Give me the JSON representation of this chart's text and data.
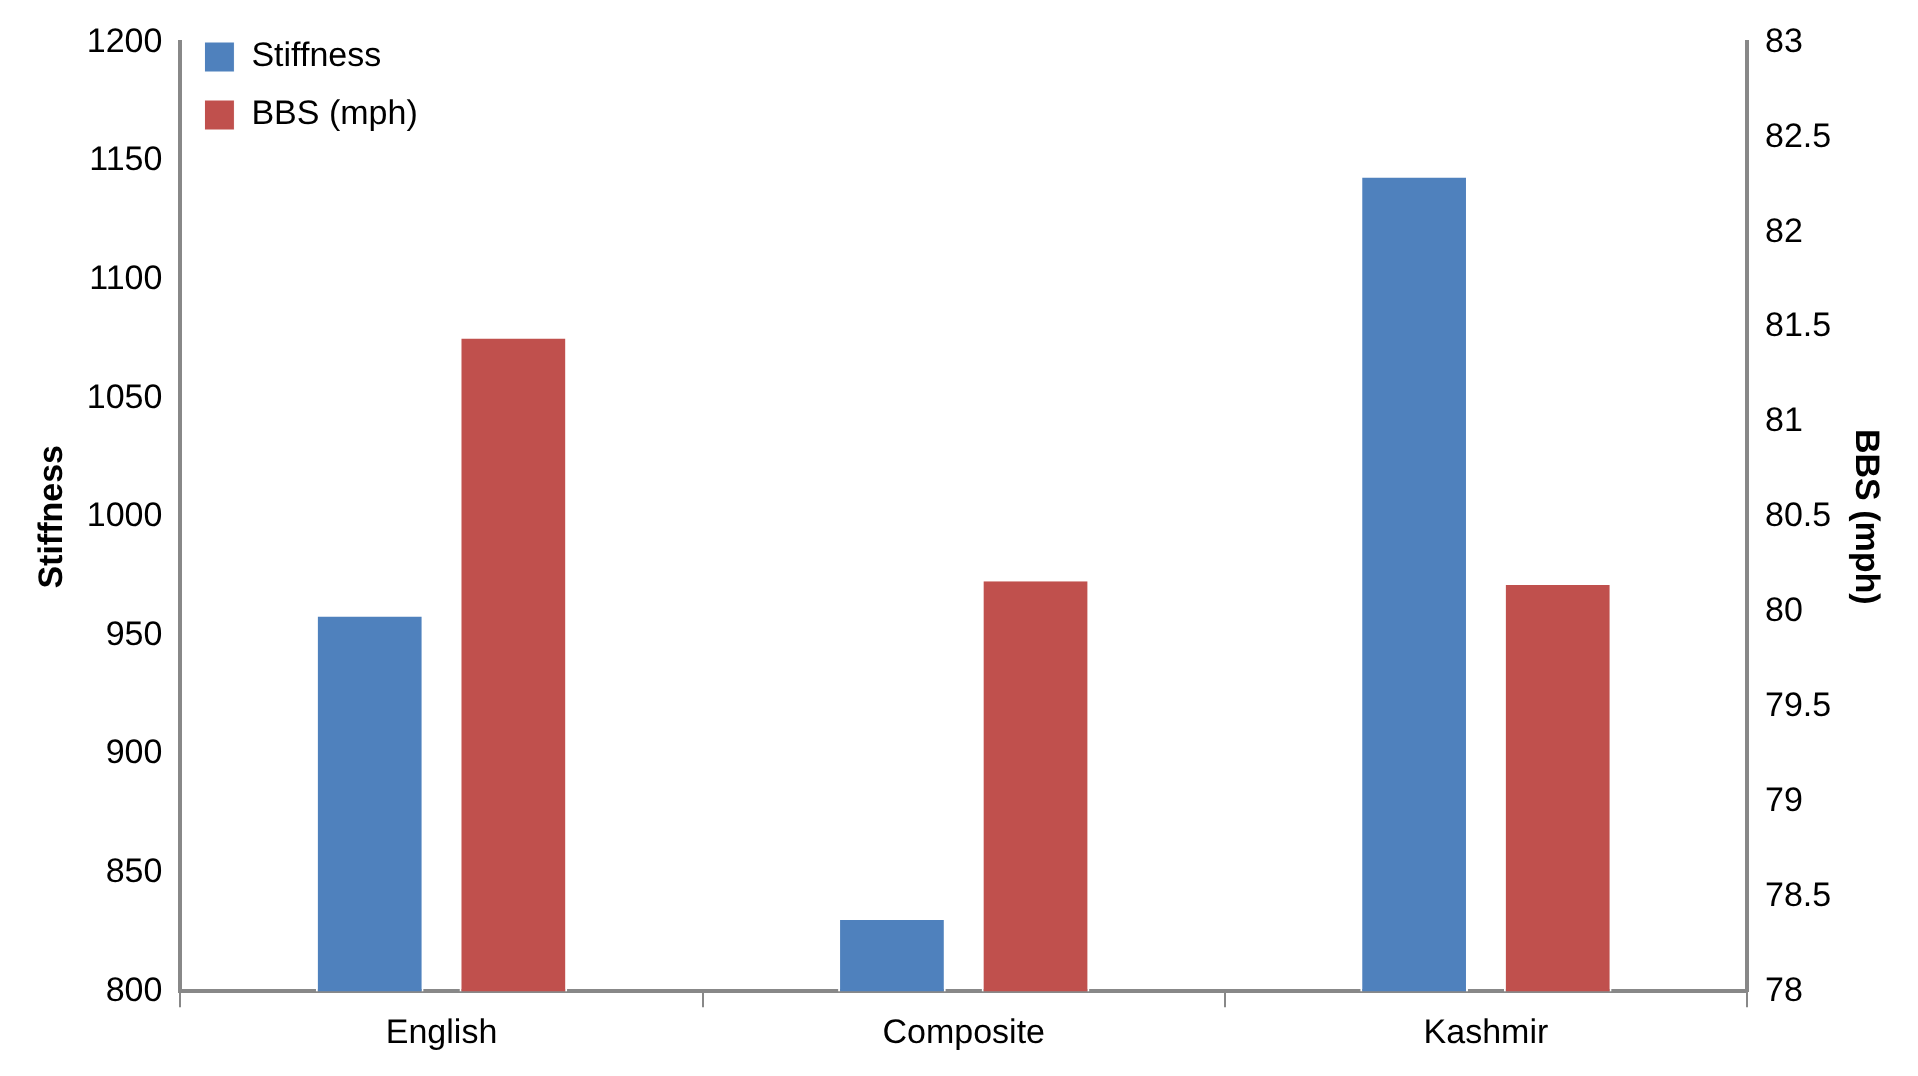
{
  "chart_data": {
    "type": "bar",
    "categories": [
      "English",
      "Composite",
      "Kashmir"
    ],
    "ylabel": "Stiffness",
    "y2label": "BBS (mph)",
    "series": [
      {
        "name": "Stiffness",
        "color": "#4f81bd",
        "values": [
          958,
          830,
          1143
        ]
      },
      {
        "name": "BBS (mph)",
        "color": "#c0504d",
        "values": [
          81.44,
          80.16,
          80.14
        ],
        "axis": "y2"
      }
    ],
    "ylim": [
      800,
      1200
    ],
    "yticks": [
      800,
      850,
      900,
      950,
      1000,
      1050,
      1100,
      1150,
      1200
    ],
    "y2lim": [
      78,
      83
    ],
    "y2ticks": [
      78,
      78.5,
      79,
      79.5,
      80,
      80.5,
      81,
      81.5,
      82,
      82.5,
      83
    ],
    "grid": false,
    "legend": "top left"
  }
}
